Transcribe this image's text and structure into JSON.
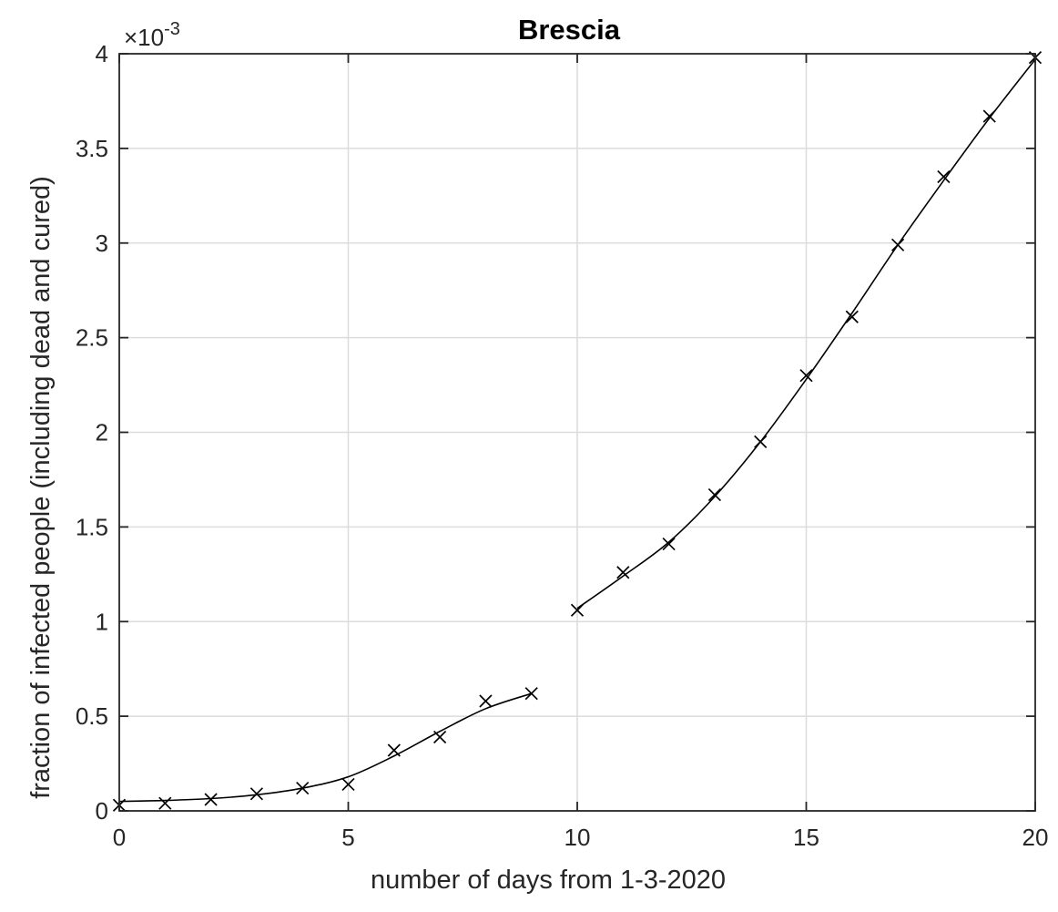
{
  "chart_data": {
    "type": "scatter",
    "title": "Brescia",
    "xlabel": "number of days from 1-3-2020",
    "ylabel": "fraction of infected people (including dead and cured)",
    "exponent_label": "×10",
    "exponent_power": "-3",
    "xlim": [
      0,
      20
    ],
    "ylim": [
      0,
      4
    ],
    "y_scale_note": "values in units of 1e-3",
    "xticks": [
      0,
      5,
      10,
      15,
      20
    ],
    "xtick_labels": [
      "0",
      "5",
      "10",
      "15",
      "20"
    ],
    "yticks": [
      0,
      0.5,
      1,
      1.5,
      2,
      2.5,
      3,
      3.5,
      4
    ],
    "ytick_labels": [
      "0",
      "0.5",
      "1",
      "1.5",
      "2",
      "2.5",
      "3",
      "3.5",
      "4"
    ],
    "grid": true,
    "legend": "none",
    "series": [
      {
        "marker": "x",
        "x": [
          0,
          1,
          2,
          3,
          4,
          5,
          6,
          7,
          8,
          9,
          10,
          11,
          12,
          13,
          14,
          15,
          16,
          17,
          18,
          19,
          20
        ],
        "y": [
          0.03,
          0.04,
          0.06,
          0.09,
          0.12,
          0.14,
          0.32,
          0.39,
          0.58,
          0.62,
          1.06,
          1.26,
          1.41,
          1.67,
          1.95,
          2.3,
          2.61,
          2.99,
          3.35,
          3.67,
          3.98
        ]
      },
      {
        "style": "line",
        "segment": "fit days 0-9",
        "x": [
          0,
          1,
          2,
          3,
          4,
          5,
          6,
          7,
          8,
          9
        ],
        "y": [
          0.05,
          0.055,
          0.065,
          0.085,
          0.12,
          0.18,
          0.29,
          0.42,
          0.54,
          0.62
        ]
      },
      {
        "style": "line",
        "segment": "fit days 10-20",
        "x": [
          10,
          11,
          12,
          13,
          14,
          15,
          16,
          17,
          18,
          19,
          20
        ],
        "y": [
          1.07,
          1.24,
          1.42,
          1.66,
          1.95,
          2.28,
          2.63,
          2.99,
          3.33,
          3.66,
          3.97
        ]
      }
    ]
  }
}
